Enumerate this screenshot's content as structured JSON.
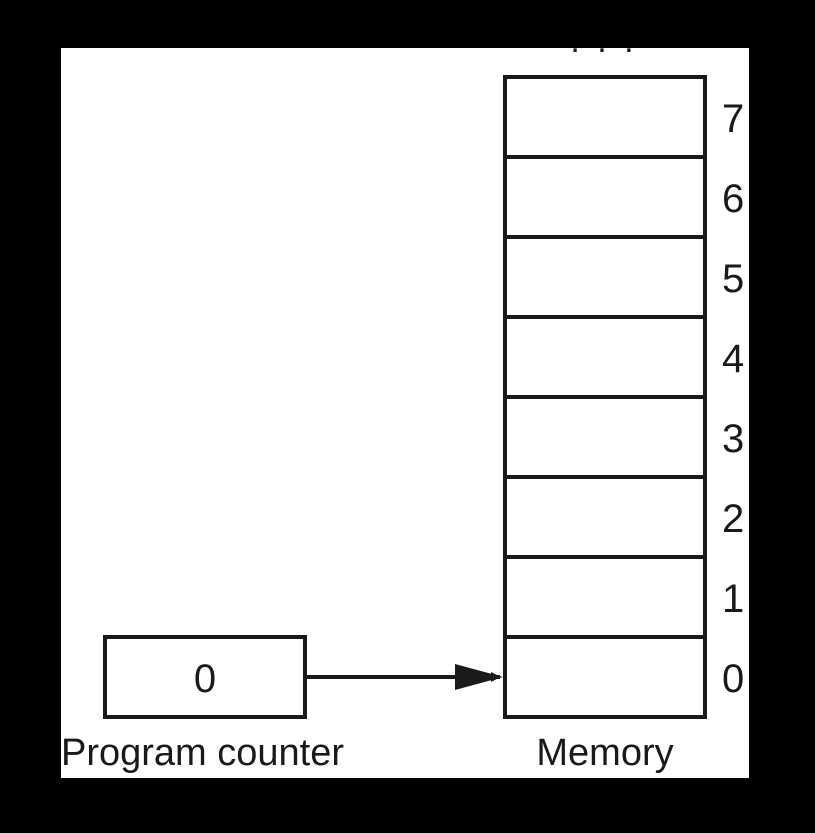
{
  "colors": {
    "frame": "#000000",
    "canvas": "#ffffff",
    "ink": "#1a1a1a"
  },
  "memory": {
    "ellipsis": ". . .",
    "label": "Memory",
    "addresses": [
      "7",
      "6",
      "5",
      "4",
      "3",
      "2",
      "1",
      "0"
    ]
  },
  "program_counter": {
    "value": "0",
    "label": "Program counter"
  }
}
